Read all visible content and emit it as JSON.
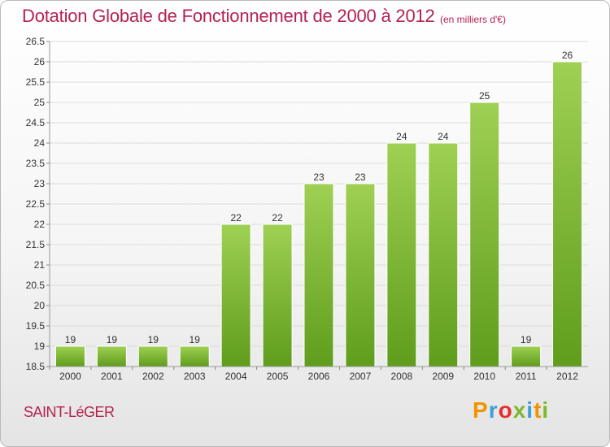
{
  "title": "Dotation Globale de Fonctionnement de 2000 à 2012",
  "units": "(en milliers d'€)",
  "commune": "SAINT-LéGER",
  "logo": {
    "text": "Proxiti",
    "letters": [
      "P",
      "r",
      "o",
      "x",
      "i",
      "t",
      "i"
    ],
    "colors": [
      "#f29400",
      "#3aa0d8",
      "#e52e2e",
      "#7cb82f",
      "#3aa0d8",
      "#f29400",
      "#7cb82f"
    ]
  },
  "colors": {
    "title": "#b5224f",
    "bar_top": "#9fd054",
    "bar_bottom": "#5f9d1c",
    "grid": "#dcdcdc"
  },
  "chart_data": {
    "type": "bar",
    "title": "Dotation Globale de Fonctionnement de 2000 à 2012",
    "xlabel": "",
    "ylabel": "",
    "categories": [
      "2000",
      "2001",
      "2002",
      "2003",
      "2004",
      "2005",
      "2006",
      "2007",
      "2008",
      "2009",
      "2010",
      "2011",
      "2012"
    ],
    "values": [
      19,
      19,
      19,
      19,
      22,
      22,
      23,
      23,
      24,
      24,
      25,
      19,
      26
    ],
    "ylim": [
      18.5,
      26.5
    ],
    "yticks": [
      "18.5",
      "19",
      "19.5",
      "20",
      "20.5",
      "21",
      "21.5",
      "22",
      "22.5",
      "23",
      "23.5",
      "24",
      "24.5",
      "25",
      "25.5",
      "26",
      "26.5"
    ],
    "grid": true,
    "legend": "none"
  }
}
